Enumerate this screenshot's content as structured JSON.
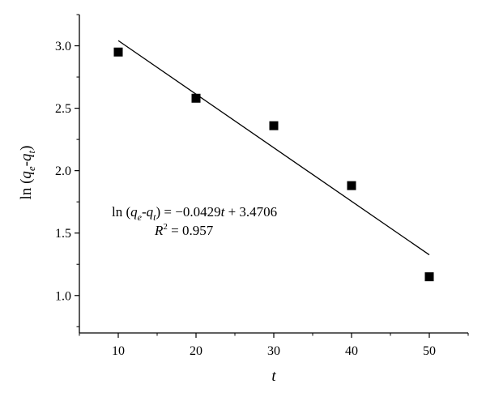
{
  "chart_data": {
    "type": "scatter",
    "title": "",
    "xlabel": "t",
    "ylabel": "ln (qe-qt)",
    "xlim": [
      5,
      55
    ],
    "ylim": [
      0.7,
      3.25
    ],
    "x_ticks": [
      10,
      20,
      30,
      40,
      50
    ],
    "x_tick_labels": [
      "10",
      "20",
      "30",
      "40",
      "50"
    ],
    "y_ticks": [
      1.0,
      1.5,
      2.0,
      2.5,
      3.0
    ],
    "y_tick_labels": [
      "1.0",
      "1.5",
      "2.0",
      "2.5",
      "3.0"
    ],
    "grid": false,
    "series": [
      {
        "marker": "square",
        "color": "#000000",
        "x": [
          10,
          20,
          30,
          40,
          50
        ],
        "y": [
          2.95,
          2.58,
          2.36,
          1.88,
          1.15
        ]
      }
    ],
    "fit_line": {
      "slope": -0.0429,
      "intercept": 3.4706,
      "x_range": [
        10,
        50
      ],
      "color": "#000000"
    },
    "annotations": {
      "equation": "ln (qe-qt) = −0.0429t + 3.4706",
      "r_squared": "R2 = 0.957"
    }
  }
}
